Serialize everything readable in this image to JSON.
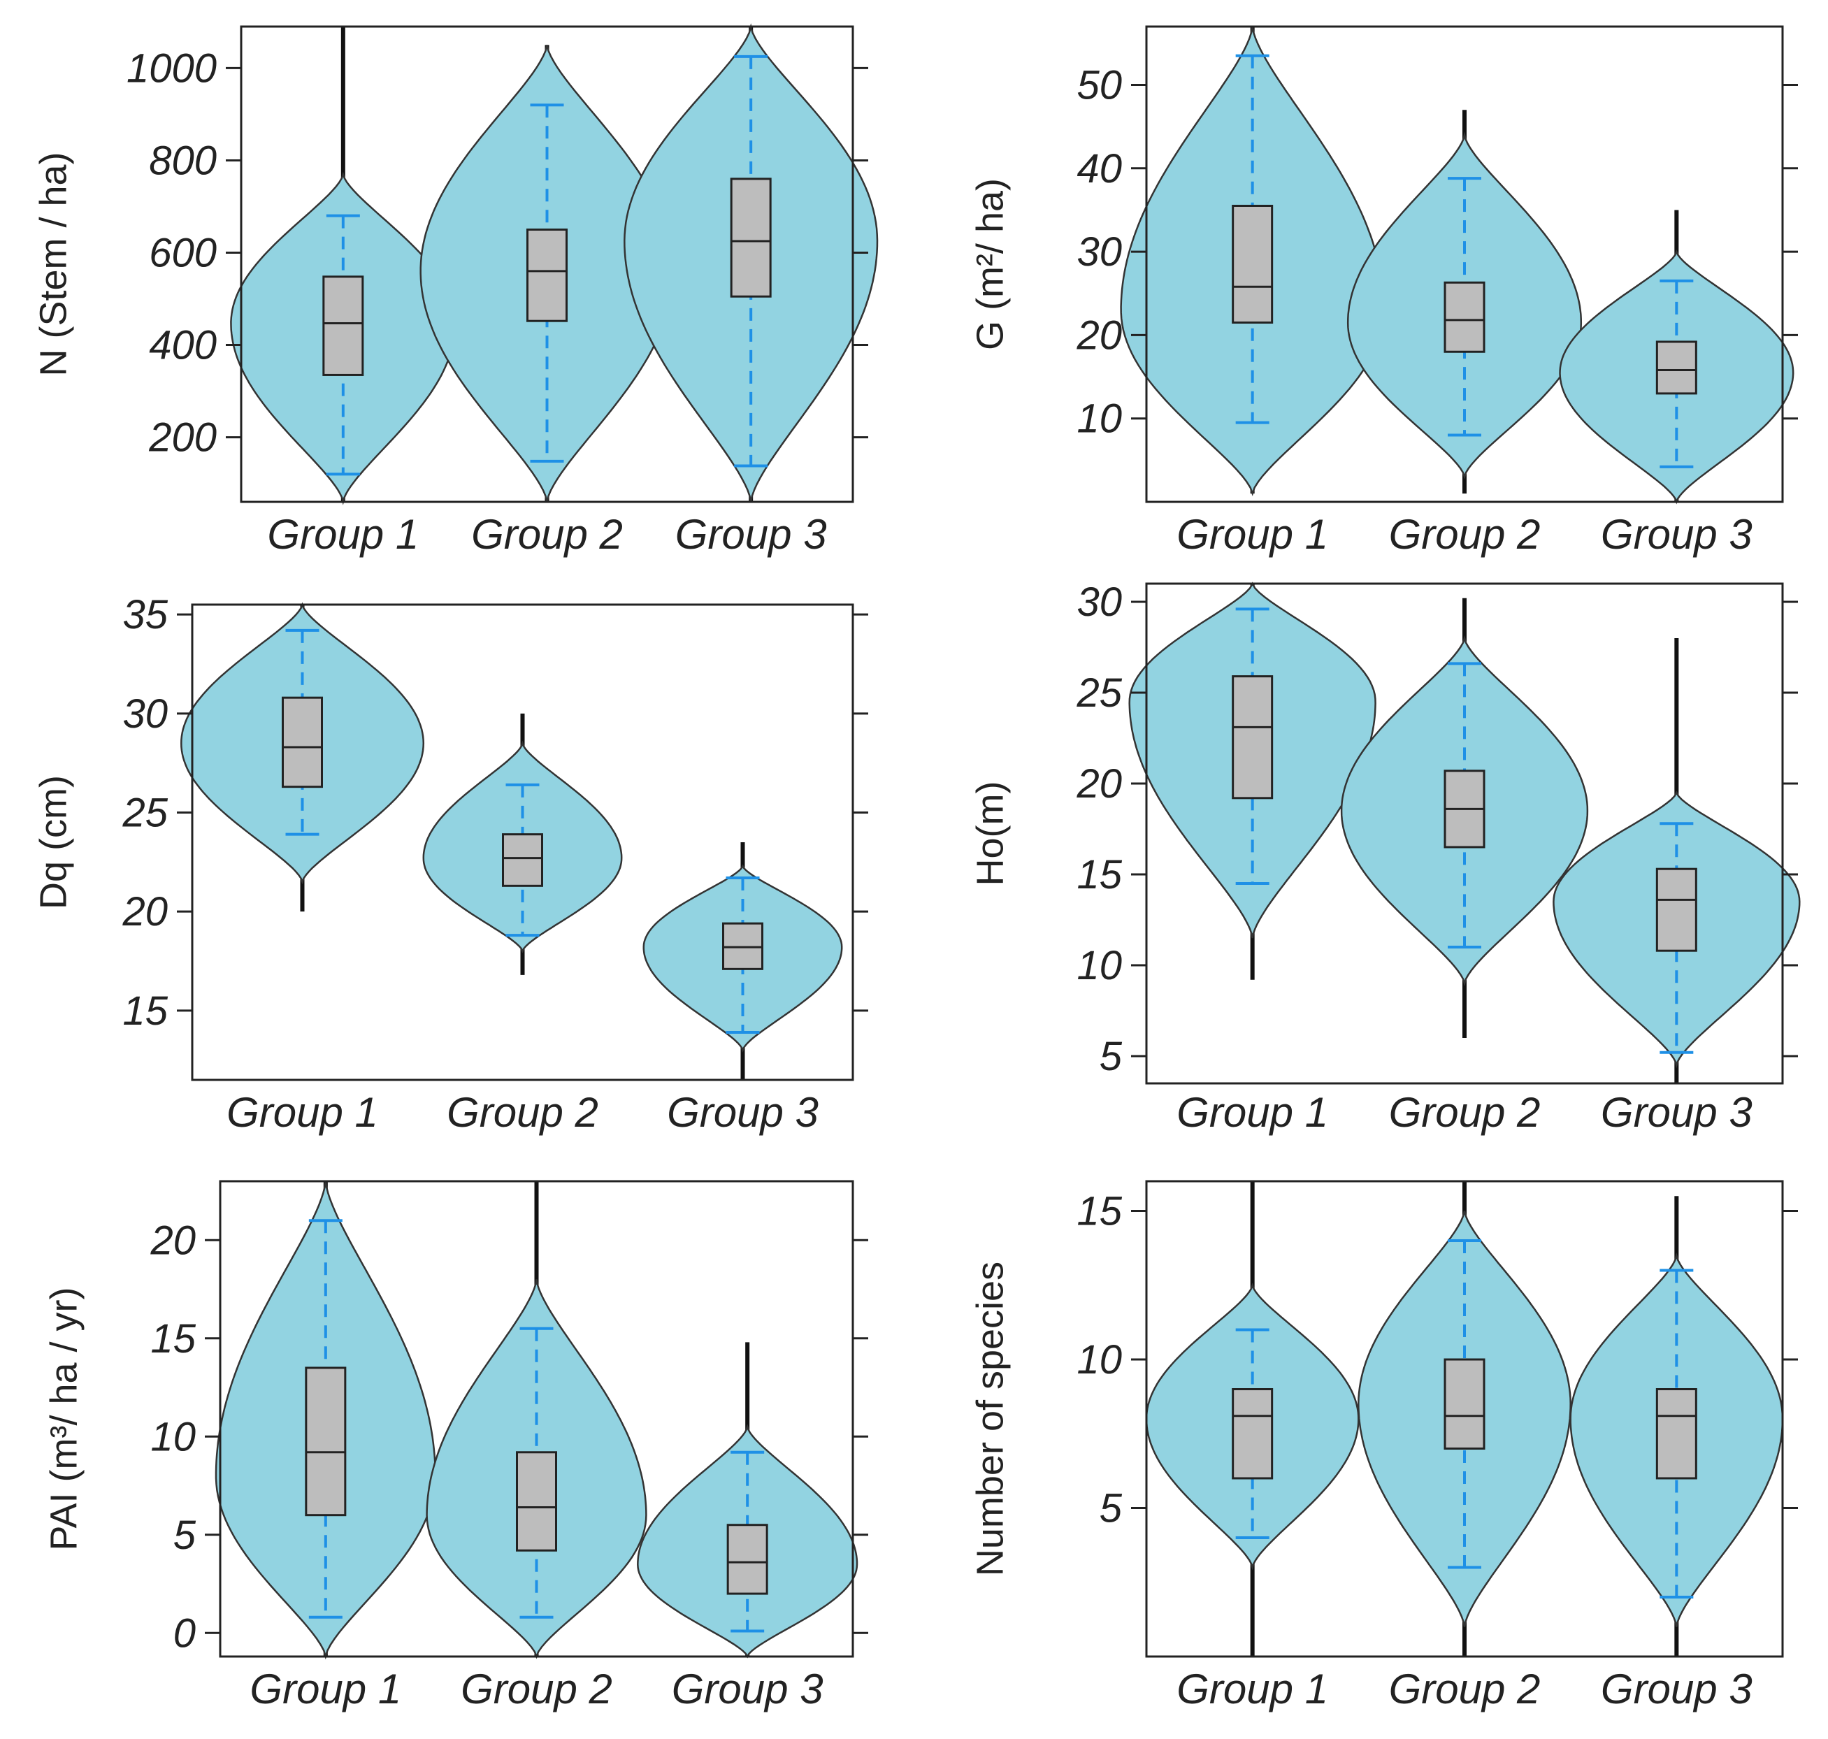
{
  "chart_data": [
    {
      "type": "violin",
      "ylabel": "N (Stem / ha)",
      "ylim": [
        60,
        1090
      ],
      "yticks": [
        200,
        400,
        600,
        800,
        1000
      ],
      "categories": [
        "Group 1",
        "Group 2",
        "Group 3"
      ],
      "groups": [
        {
          "name": "Group 1",
          "min": 60,
          "max": 1090,
          "whisker_low": 120,
          "q1": 335,
          "median": 447,
          "q3": 548,
          "whisker_high": 680,
          "violin_low": 60,
          "violin_high": 770,
          "mode": 447,
          "max_halfwidth": 0.55,
          "tail_high": 1000
        },
        {
          "name": "Group 2",
          "min": 60,
          "max": 1050,
          "whisker_low": 148,
          "q1": 452,
          "median": 560,
          "q3": 650,
          "whisker_high": 920,
          "violin_low": 60,
          "violin_high": 1050,
          "mode": 560,
          "max_halfwidth": 0.62
        },
        {
          "name": "Group 3",
          "min": 60,
          "max": 1090,
          "whisker_low": 138,
          "q1": 505,
          "median": 625,
          "q3": 760,
          "whisker_high": 1025,
          "violin_low": 60,
          "violin_high": 1090,
          "mode": 625,
          "max_halfwidth": 0.62
        }
      ]
    },
    {
      "type": "violin",
      "ylabel": "G (m²/ ha)",
      "ylim": [
        0,
        57
      ],
      "yticks": [
        10,
        20,
        30,
        40,
        50
      ],
      "categories": [
        "Group 1",
        "Group 2",
        "Group 3"
      ],
      "groups": [
        {
          "name": "Group 1",
          "min": 1,
          "max": 57,
          "whisker_low": 9.5,
          "q1": 21.5,
          "median": 25.8,
          "q3": 35.5,
          "whisker_high": 53.5,
          "violin_low": 1,
          "violin_high": 57,
          "mode": 23,
          "max_halfwidth": 0.62
        },
        {
          "name": "Group 2",
          "min": 1,
          "max": 47,
          "whisker_low": 8,
          "q1": 18,
          "median": 21.8,
          "q3": 26.3,
          "whisker_high": 38.8,
          "violin_low": 3,
          "violin_high": 44,
          "mode": 21.5,
          "max_halfwidth": 0.55
        },
        {
          "name": "Group 3",
          "min": 0,
          "max": 35,
          "whisker_low": 4.2,
          "q1": 13,
          "median": 15.8,
          "q3": 19.2,
          "whisker_high": 26.5,
          "violin_low": 0,
          "violin_high": 30,
          "mode": 15.5,
          "max_halfwidth": 0.55
        }
      ]
    },
    {
      "type": "violin",
      "ylabel": "Dq (cm)",
      "ylim": [
        11.5,
        35.5
      ],
      "yticks": [
        15,
        20,
        25,
        30,
        35
      ],
      "categories": [
        "Group 1",
        "Group 2",
        "Group 3"
      ],
      "groups": [
        {
          "name": "Group 1",
          "min": 20,
          "max": 35.5,
          "whisker_low": 23.9,
          "q1": 26.3,
          "median": 28.3,
          "q3": 30.8,
          "whisker_high": 34.2,
          "violin_low": 21.5,
          "violin_high": 35.5,
          "mode": 28.5,
          "max_halfwidth": 0.55
        },
        {
          "name": "Group 2",
          "min": 16.8,
          "max": 30,
          "whisker_low": 18.8,
          "q1": 21.3,
          "median": 22.7,
          "q3": 23.9,
          "whisker_high": 26.4,
          "violin_low": 18,
          "violin_high": 28.5,
          "mode": 22.7,
          "max_halfwidth": 0.45
        },
        {
          "name": "Group 3",
          "min": 11.5,
          "max": 23.5,
          "whisker_low": 13.9,
          "q1": 17.1,
          "median": 18.2,
          "q3": 19.4,
          "whisker_high": 21.7,
          "violin_low": 13,
          "violin_high": 22.3,
          "mode": 18.2,
          "max_halfwidth": 0.45
        }
      ]
    },
    {
      "type": "violin",
      "ylabel": "Ho(m)",
      "ylim": [
        3.5,
        31
      ],
      "yticks": [
        5,
        10,
        15,
        20,
        25,
        30
      ],
      "categories": [
        "Group 1",
        "Group 2",
        "Group 3"
      ],
      "groups": [
        {
          "name": "Group 1",
          "min": 9.2,
          "max": 31,
          "whisker_low": 14.5,
          "q1": 19.2,
          "median": 23.1,
          "q3": 25.9,
          "whisker_high": 29.6,
          "violin_low": 11.5,
          "violin_high": 31,
          "mode": 24.5,
          "max_halfwidth": 0.58
        },
        {
          "name": "Group 2",
          "min": 6,
          "max": 30.2,
          "whisker_low": 11,
          "q1": 16.5,
          "median": 18.6,
          "q3": 20.7,
          "whisker_high": 26.6,
          "violin_low": 9,
          "violin_high": 28,
          "mode": 18.5,
          "max_halfwidth": 0.58
        },
        {
          "name": "Group 3",
          "min": 3.5,
          "max": 28,
          "whisker_low": 5.2,
          "q1": 10.8,
          "median": 13.6,
          "q3": 15.3,
          "whisker_high": 17.8,
          "violin_low": 4.5,
          "violin_high": 19.5,
          "mode": 13.5,
          "max_halfwidth": 0.58
        }
      ]
    },
    {
      "type": "violin",
      "ylabel": "PAI (m³/ ha / yr)",
      "ylim": [
        -1.2,
        23
      ],
      "yticks": [
        0,
        5,
        10,
        15,
        20
      ],
      "categories": [
        "Group 1",
        "Group 2",
        "Group 3"
      ],
      "groups": [
        {
          "name": "Group 1",
          "min": -1.2,
          "max": 23,
          "whisker_low": 0.8,
          "q1": 6,
          "median": 9.2,
          "q3": 13.5,
          "whisker_high": 21,
          "violin_low": -1.2,
          "violin_high": 23,
          "mode": 8,
          "max_halfwidth": 0.52
        },
        {
          "name": "Group 2",
          "min": -1.2,
          "max": 23,
          "whisker_low": 0.8,
          "q1": 4.2,
          "median": 6.4,
          "q3": 9.2,
          "whisker_high": 15.5,
          "violin_low": -1.2,
          "violin_high": 18,
          "mode": 6,
          "max_halfwidth": 0.52
        },
        {
          "name": "Group 3",
          "min": -1.2,
          "max": 14.8,
          "whisker_low": 0.1,
          "q1": 2,
          "median": 3.6,
          "q3": 5.5,
          "whisker_high": 9.2,
          "violin_low": -1.2,
          "violin_high": 10.5,
          "mode": 3.5,
          "max_halfwidth": 0.52
        }
      ]
    },
    {
      "type": "violin",
      "ylabel": "Number of species",
      "ylim": [
        0,
        16
      ],
      "yticks": [
        5,
        10,
        15
      ],
      "categories": [
        "Group 1",
        "Group 2",
        "Group 3"
      ],
      "groups": [
        {
          "name": "Group 1",
          "min": 0,
          "max": 16,
          "whisker_low": 4,
          "q1": 6,
          "median": 8.1,
          "q3": 9,
          "whisker_high": 11,
          "violin_low": 3,
          "violin_high": 12.5,
          "mode": 8,
          "max_halfwidth": 0.5
        },
        {
          "name": "Group 2",
          "min": 0,
          "max": 16,
          "whisker_low": 3,
          "q1": 7,
          "median": 8.1,
          "q3": 10,
          "whisker_high": 14,
          "violin_low": 1,
          "violin_high": 15,
          "mode": 8.5,
          "max_halfwidth": 0.5
        },
        {
          "name": "Group 3",
          "min": 0,
          "max": 15.5,
          "whisker_low": 2,
          "q1": 6,
          "median": 8.1,
          "q3": 9,
          "whisker_high": 13,
          "violin_low": 1,
          "violin_high": 13.5,
          "mode": 8,
          "max_halfwidth": 0.5
        }
      ]
    }
  ],
  "colors": {
    "violin_fill": "#92d3e1",
    "violin_stroke": "#333333",
    "box_fill": "#bdbdbd",
    "whisker": "#1e90e6",
    "axis": "#222222"
  }
}
